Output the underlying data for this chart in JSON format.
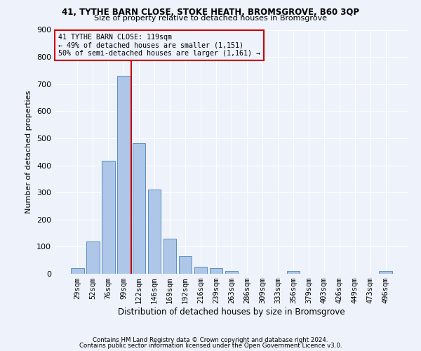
{
  "title1": "41, TYTHE BARN CLOSE, STOKE HEATH, BROMSGROVE, B60 3QP",
  "title2": "Size of property relative to detached houses in Bromsgrove",
  "xlabel": "Distribution of detached houses by size in Bromsgrove",
  "ylabel": "Number of detached properties",
  "bar_labels": [
    "29sqm",
    "52sqm",
    "76sqm",
    "99sqm",
    "122sqm",
    "146sqm",
    "169sqm",
    "192sqm",
    "216sqm",
    "239sqm",
    "263sqm",
    "286sqm",
    "309sqm",
    "333sqm",
    "356sqm",
    "379sqm",
    "403sqm",
    "426sqm",
    "449sqm",
    "473sqm",
    "496sqm"
  ],
  "bar_values": [
    20,
    120,
    418,
    730,
    482,
    312,
    130,
    65,
    25,
    20,
    10,
    0,
    0,
    0,
    10,
    0,
    0,
    0,
    0,
    0,
    10
  ],
  "bar_color": "#aec6e8",
  "bar_edgecolor": "#5a8fc2",
  "property_line_label": "41 TYTHE BARN CLOSE: 119sqm",
  "smaller_pct": "49%",
  "smaller_n": "1,151",
  "larger_pct": "50%",
  "larger_n": "1,161",
  "annotation_box_color": "#cc0000",
  "ylim": [
    0,
    900
  ],
  "yticks": [
    0,
    100,
    200,
    300,
    400,
    500,
    600,
    700,
    800,
    900
  ],
  "footer1": "Contains HM Land Registry data © Crown copyright and database right 2024.",
  "footer2": "Contains public sector information licensed under the Open Government Licence v3.0.",
  "bg_color": "#eef2fa",
  "grid_color": "#ffffff"
}
